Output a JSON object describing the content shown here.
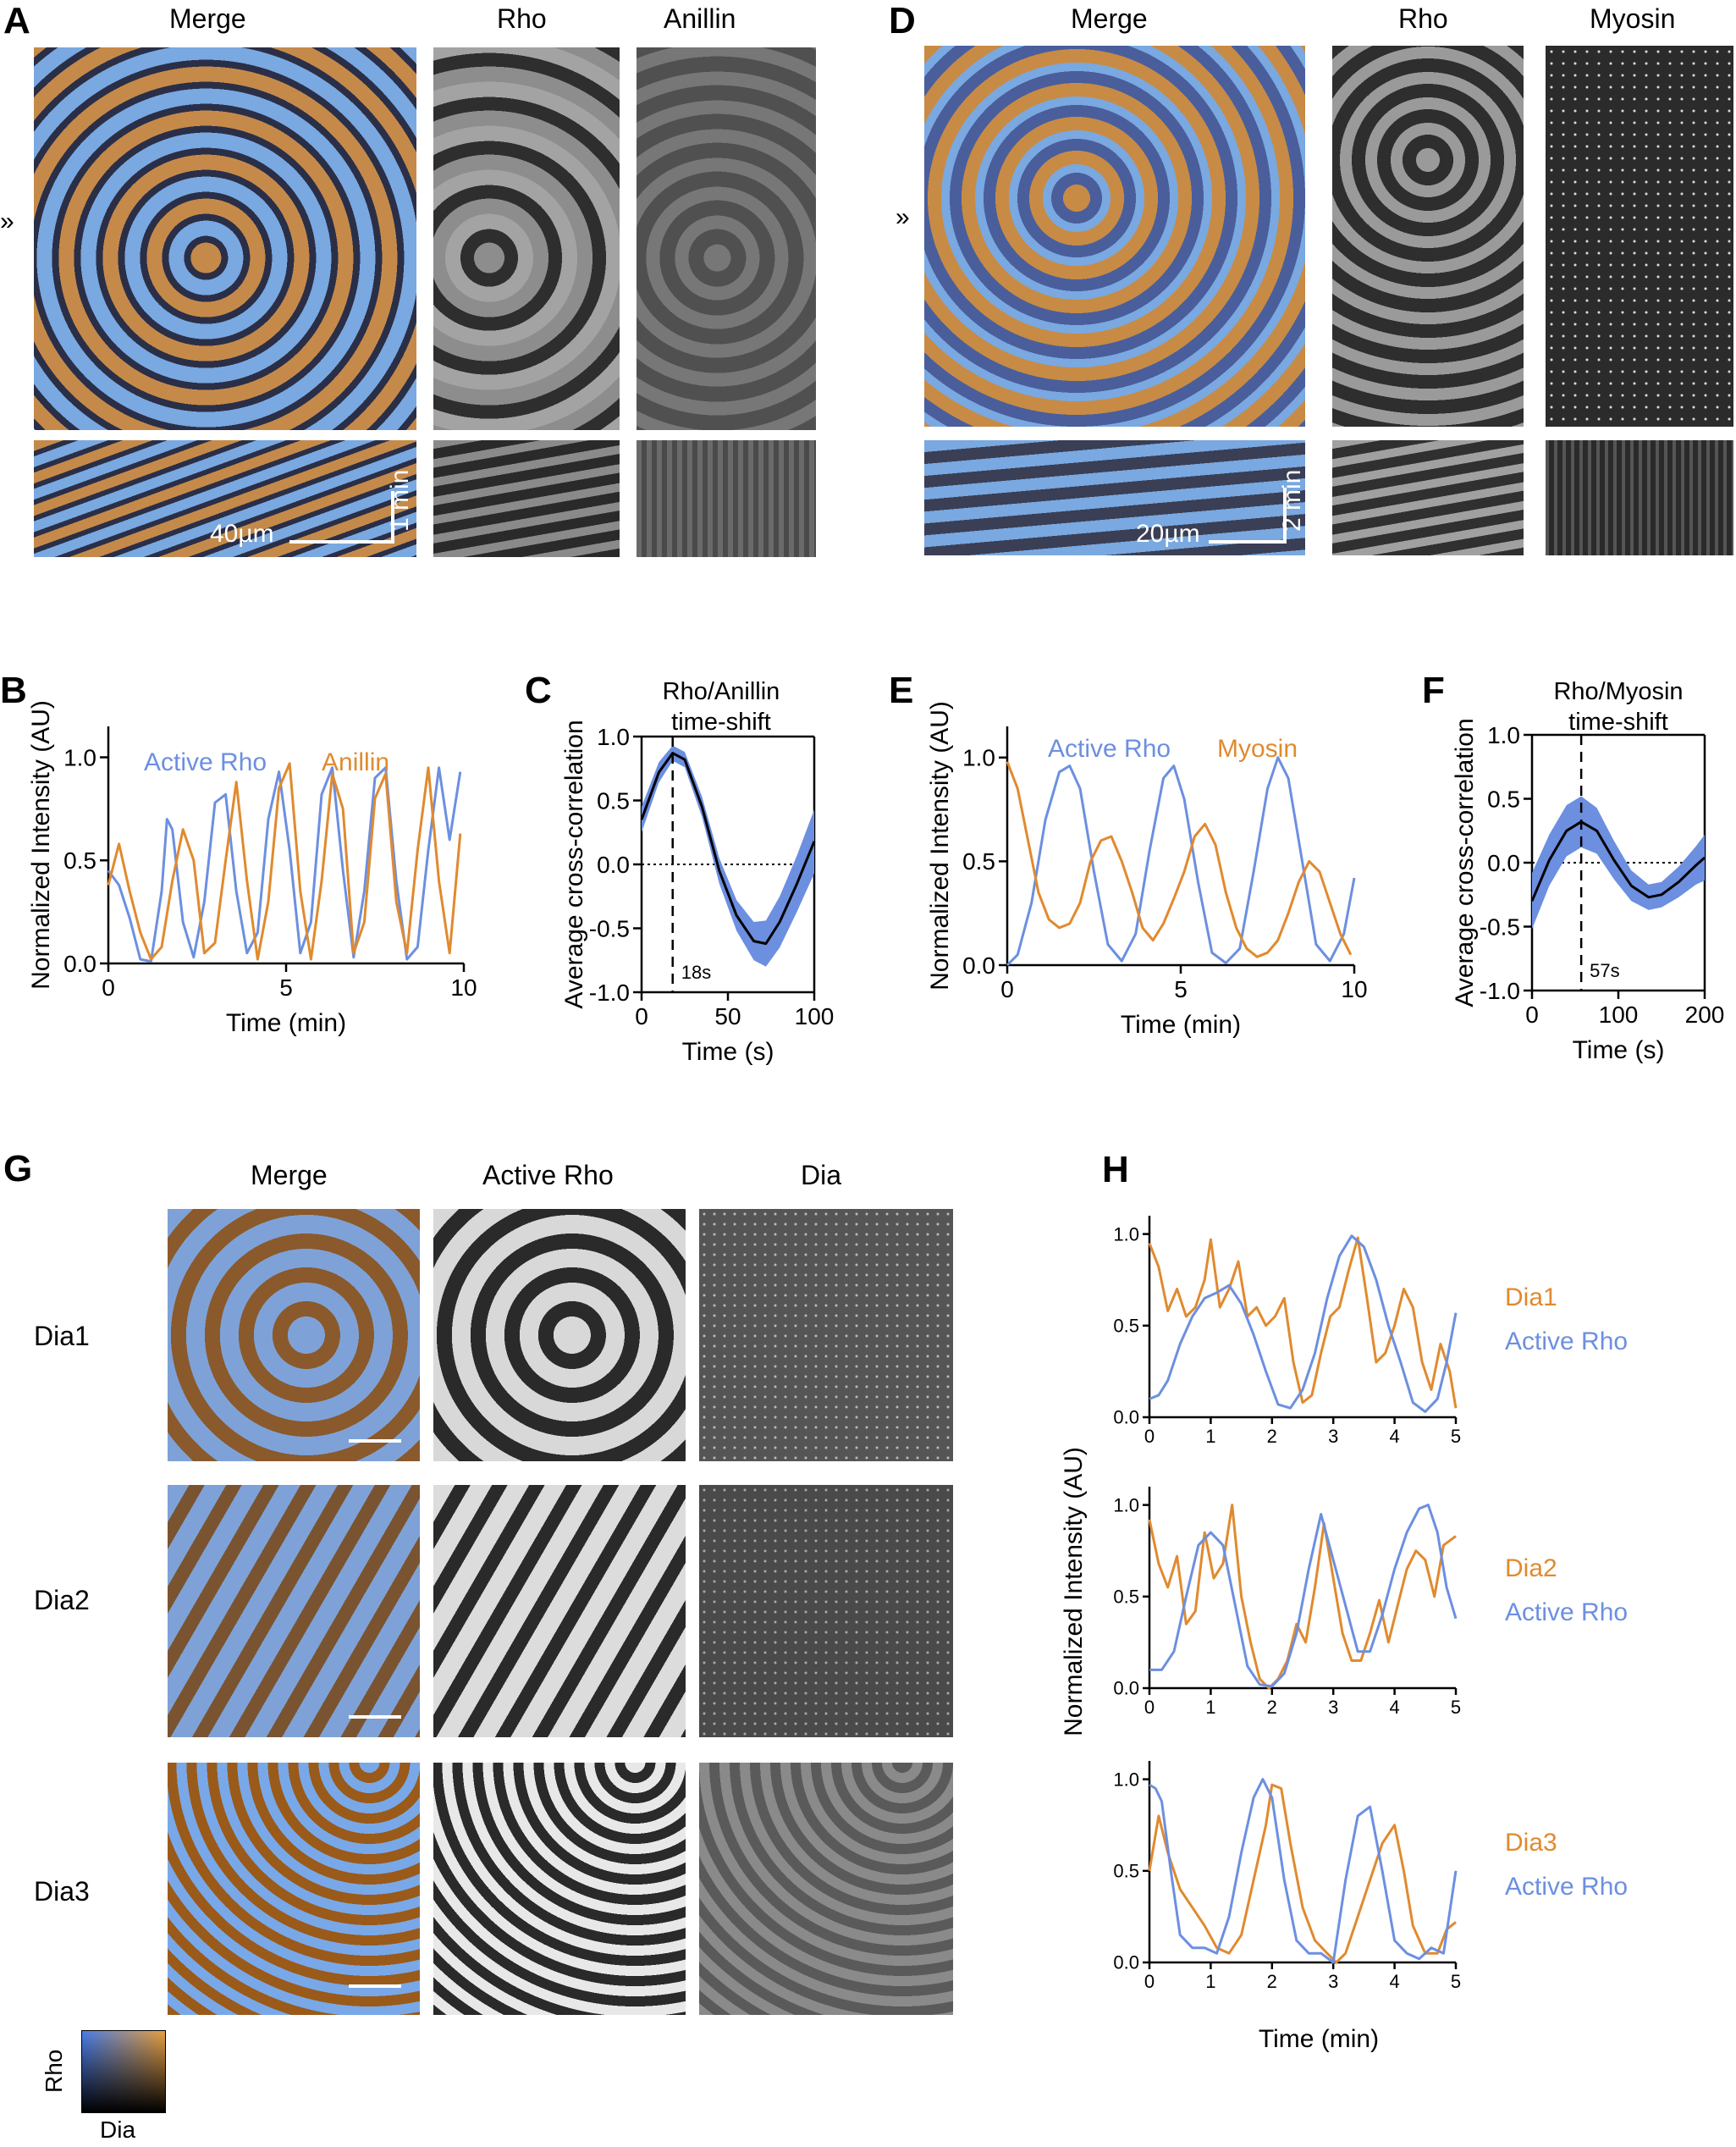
{
  "panels": {
    "A": {
      "letter": "A",
      "titles": [
        "Merge",
        "Rho",
        "Anillin"
      ],
      "arrow": "»",
      "scale_x": "40µm",
      "scale_y": "1 min"
    },
    "D": {
      "letter": "D",
      "titles": [
        "Merge",
        "Rho",
        "Myosin"
      ],
      "arrow": "»",
      "scale_x": "20µm",
      "scale_y": "2 min"
    },
    "G": {
      "letter": "G",
      "titles": [
        "Merge",
        "Active Rho",
        "Dia"
      ],
      "rows": [
        "Dia1",
        "Dia2",
        "Dia3"
      ],
      "colorkey_y": "Rho",
      "colorkey_x": "Dia"
    }
  },
  "colors": {
    "rho": "#6c8fe0",
    "partner": "#e08a2f",
    "band": "#6c8fe0"
  },
  "chart_data": [
    {
      "id": "B",
      "letter": "B",
      "type": "line",
      "xlabel": "Time (min)",
      "ylabel": "Normalized Intensity (AU)",
      "xlim": [
        0,
        10
      ],
      "ylim": [
        0,
        1.15
      ],
      "xticks": [
        0,
        5,
        10
      ],
      "yticks": [
        0.0,
        0.5,
        1.0
      ],
      "legend": [
        "Active Rho",
        "Anillin"
      ],
      "series": [
        {
          "name": "Active Rho",
          "color": "#6c8fe0",
          "x": [
            0,
            0.3,
            0.6,
            0.9,
            1.2,
            1.5,
            1.65,
            1.8,
            2.1,
            2.4,
            2.7,
            3.0,
            3.3,
            3.6,
            3.9,
            4.2,
            4.5,
            4.8,
            5.1,
            5.4,
            5.7,
            6.0,
            6.3,
            6.6,
            6.9,
            7.2,
            7.5,
            7.8,
            8.1,
            8.4,
            8.7,
            9.0,
            9.3,
            9.6,
            9.9
          ],
          "y": [
            0.45,
            0.38,
            0.22,
            0.02,
            0.01,
            0.35,
            0.7,
            0.65,
            0.2,
            0.03,
            0.3,
            0.78,
            0.82,
            0.35,
            0.05,
            0.15,
            0.7,
            0.93,
            0.55,
            0.05,
            0.2,
            0.82,
            0.95,
            0.45,
            0.03,
            0.35,
            0.9,
            0.95,
            0.4,
            0.02,
            0.08,
            0.55,
            0.95,
            0.6,
            0.93
          ]
        },
        {
          "name": "Anillin",
          "color": "#e08a2f",
          "x": [
            0,
            0.3,
            0.6,
            0.9,
            1.2,
            1.5,
            1.8,
            2.1,
            2.4,
            2.7,
            3.0,
            3.3,
            3.6,
            3.9,
            4.2,
            4.5,
            4.8,
            5.1,
            5.4,
            5.7,
            6.0,
            6.3,
            6.6,
            6.9,
            7.2,
            7.5,
            7.8,
            8.1,
            8.4,
            8.7,
            9.0,
            9.3,
            9.6,
            9.9
          ],
          "y": [
            0.38,
            0.58,
            0.35,
            0.15,
            0.02,
            0.08,
            0.4,
            0.65,
            0.5,
            0.05,
            0.1,
            0.5,
            0.88,
            0.4,
            0.02,
            0.3,
            0.85,
            0.97,
            0.35,
            0.02,
            0.4,
            0.92,
            0.75,
            0.05,
            0.2,
            0.8,
            0.92,
            0.3,
            0.05,
            0.55,
            0.95,
            0.4,
            0.05,
            0.63
          ]
        }
      ]
    },
    {
      "id": "C",
      "letter": "C",
      "type": "line",
      "title": "Rho/Anillin\ntime-shift",
      "xlabel": "Time (s)",
      "ylabel": "Average cross-correlation",
      "xlim": [
        0,
        100
      ],
      "ylim": [
        -1,
        1
      ],
      "xticks": [
        0,
        50,
        100
      ],
      "yticks": [
        -1.0,
        -0.5,
        0.0,
        0.5,
        1.0
      ],
      "vline": 18,
      "vline_label": "18s",
      "series": [
        {
          "name": "",
          "color": "#000",
          "x": [
            0,
            10,
            18,
            25,
            35,
            45,
            55,
            65,
            72,
            80,
            90,
            100
          ],
          "y": [
            0.35,
            0.72,
            0.87,
            0.82,
            0.45,
            -0.05,
            -0.4,
            -0.6,
            -0.62,
            -0.45,
            -0.15,
            0.18
          ],
          "band": [
            0.1,
            0.08,
            0.06,
            0.06,
            0.08,
            0.1,
            0.12,
            0.15,
            0.18,
            0.2,
            0.22,
            0.25
          ]
        }
      ]
    },
    {
      "id": "E",
      "letter": "E",
      "type": "line",
      "xlabel": "Time (min)",
      "ylabel": "Normalized Intensity (AU)",
      "xlim": [
        0,
        10
      ],
      "ylim": [
        0,
        1.15
      ],
      "xticks": [
        0,
        5,
        10
      ],
      "yticks": [
        0.0,
        0.5,
        1.0
      ],
      "legend": [
        "Active Rho",
        "Myosin"
      ],
      "series": [
        {
          "name": "Active Rho",
          "color": "#6c8fe0",
          "x": [
            0,
            0.3,
            0.7,
            1.1,
            1.5,
            1.8,
            2.1,
            2.5,
            2.9,
            3.3,
            3.7,
            4.1,
            4.5,
            4.8,
            5.1,
            5.5,
            5.9,
            6.3,
            6.7,
            7.1,
            7.5,
            7.8,
            8.1,
            8.5,
            8.9,
            9.3,
            9.7,
            10
          ],
          "y": [
            0.0,
            0.05,
            0.3,
            0.7,
            0.93,
            0.96,
            0.85,
            0.45,
            0.1,
            0.02,
            0.15,
            0.55,
            0.9,
            0.96,
            0.8,
            0.4,
            0.06,
            0.01,
            0.08,
            0.45,
            0.85,
            1.0,
            0.9,
            0.5,
            0.1,
            0.02,
            0.15,
            0.42
          ]
        },
        {
          "name": "Myosin",
          "color": "#e08a2f",
          "x": [
            0,
            0.3,
            0.6,
            0.9,
            1.2,
            1.5,
            1.8,
            2.1,
            2.4,
            2.7,
            3.0,
            3.3,
            3.6,
            3.9,
            4.2,
            4.5,
            4.8,
            5.1,
            5.4,
            5.7,
            6.0,
            6.3,
            6.6,
            6.9,
            7.2,
            7.5,
            7.8,
            8.1,
            8.4,
            8.7,
            9.0,
            9.3,
            9.6,
            9.9
          ],
          "y": [
            0.98,
            0.85,
            0.6,
            0.35,
            0.22,
            0.18,
            0.2,
            0.3,
            0.5,
            0.6,
            0.62,
            0.5,
            0.35,
            0.18,
            0.12,
            0.2,
            0.32,
            0.45,
            0.62,
            0.68,
            0.58,
            0.35,
            0.18,
            0.08,
            0.04,
            0.06,
            0.12,
            0.25,
            0.4,
            0.5,
            0.45,
            0.3,
            0.15,
            0.05
          ]
        }
      ]
    },
    {
      "id": "F",
      "letter": "F",
      "type": "line",
      "title": "Rho/Myosin\ntime-shift",
      "xlabel": "Time (s)",
      "ylabel": "Average cross-correlation",
      "xlim": [
        0,
        200
      ],
      "ylim": [
        -1,
        1
      ],
      "xticks": [
        0,
        100,
        200
      ],
      "yticks": [
        -1.0,
        -0.5,
        0.0,
        0.5,
        1.0
      ],
      "vline": 57,
      "vline_label": "57s",
      "series": [
        {
          "name": "",
          "color": "#000",
          "x": [
            0,
            20,
            40,
            57,
            75,
            95,
            115,
            135,
            150,
            170,
            190,
            200
          ],
          "y": [
            -0.3,
            0.02,
            0.25,
            0.32,
            0.25,
            0.02,
            -0.18,
            -0.27,
            -0.25,
            -0.15,
            -0.02,
            0.04
          ],
          "band": [
            0.22,
            0.2,
            0.2,
            0.2,
            0.18,
            0.15,
            0.12,
            0.1,
            0.1,
            0.12,
            0.15,
            0.18
          ]
        }
      ]
    },
    {
      "id": "H",
      "letter": "H",
      "type": "line",
      "xlabel": "Time (min)",
      "ylabel": "Normalized Intensity (AU)",
      "subplots": [
        {
          "legend": [
            "Dia1",
            "Active  Rho"
          ],
          "xlim": [
            0,
            5
          ],
          "ylim": [
            0,
            1.1
          ],
          "xticks": [
            0,
            1,
            2,
            3,
            4,
            5
          ],
          "yticks": [
            0.0,
            0.5,
            1.0
          ],
          "series": [
            {
              "name": "Dia1",
              "color": "#e08a2f",
              "x": [
                0,
                0.15,
                0.3,
                0.45,
                0.6,
                0.75,
                0.9,
                1.0,
                1.15,
                1.3,
                1.45,
                1.6,
                1.75,
                1.9,
                2.05,
                2.2,
                2.35,
                2.5,
                2.65,
                2.8,
                2.95,
                3.1,
                3.25,
                3.4,
                3.55,
                3.7,
                3.85,
                4.0,
                4.15,
                4.3,
                4.45,
                4.6,
                4.75,
                4.9,
                5.0
              ],
              "y": [
                0.95,
                0.82,
                0.58,
                0.7,
                0.55,
                0.6,
                0.75,
                0.97,
                0.6,
                0.7,
                0.85,
                0.55,
                0.6,
                0.5,
                0.55,
                0.65,
                0.3,
                0.08,
                0.12,
                0.35,
                0.55,
                0.6,
                0.8,
                0.98,
                0.65,
                0.3,
                0.35,
                0.5,
                0.7,
                0.6,
                0.3,
                0.15,
                0.4,
                0.25,
                0.05
              ]
            },
            {
              "name": "Active  Rho",
              "color": "#6c8fe0",
              "x": [
                0,
                0.15,
                0.3,
                0.5,
                0.7,
                0.9,
                1.1,
                1.3,
                1.5,
                1.7,
                1.9,
                2.1,
                2.3,
                2.5,
                2.7,
                2.9,
                3.1,
                3.3,
                3.5,
                3.7,
                3.9,
                4.1,
                4.3,
                4.5,
                4.7,
                4.85,
                5.0
              ],
              "y": [
                0.1,
                0.12,
                0.2,
                0.4,
                0.55,
                0.65,
                0.68,
                0.72,
                0.62,
                0.45,
                0.25,
                0.07,
                0.05,
                0.15,
                0.35,
                0.65,
                0.88,
                0.99,
                0.93,
                0.75,
                0.5,
                0.3,
                0.08,
                0.03,
                0.1,
                0.3,
                0.57
              ]
            }
          ]
        },
        {
          "legend": [
            "Dia2",
            "Active  Rho"
          ],
          "xlim": [
            0,
            5
          ],
          "ylim": [
            0,
            1.1
          ],
          "xticks": [
            0,
            1,
            2,
            3,
            4,
            5
          ],
          "yticks": [
            0.0,
            0.5,
            1.0
          ],
          "series": [
            {
              "name": "Dia2",
              "color": "#e08a2f",
              "x": [
                0,
                0.15,
                0.3,
                0.45,
                0.6,
                0.75,
                0.9,
                1.05,
                1.2,
                1.35,
                1.5,
                1.65,
                1.8,
                1.95,
                2.1,
                2.25,
                2.4,
                2.55,
                2.7,
                2.85,
                3.0,
                3.15,
                3.3,
                3.45,
                3.6,
                3.75,
                3.9,
                4.05,
                4.2,
                4.35,
                4.5,
                4.65,
                4.8,
                5.0
              ],
              "y": [
                0.92,
                0.68,
                0.55,
                0.72,
                0.35,
                0.42,
                0.85,
                0.6,
                0.68,
                1.0,
                0.5,
                0.25,
                0.05,
                0.0,
                0.05,
                0.15,
                0.35,
                0.25,
                0.55,
                0.9,
                0.6,
                0.3,
                0.15,
                0.15,
                0.3,
                0.48,
                0.25,
                0.45,
                0.65,
                0.75,
                0.7,
                0.5,
                0.78,
                0.83
              ]
            },
            {
              "name": "Active  Rho",
              "color": "#6c8fe0",
              "x": [
                0,
                0.2,
                0.4,
                0.6,
                0.8,
                1.0,
                1.2,
                1.4,
                1.6,
                1.8,
                2.0,
                2.2,
                2.4,
                2.6,
                2.8,
                3.0,
                3.2,
                3.4,
                3.6,
                3.8,
                4.0,
                4.2,
                4.4,
                4.55,
                4.7,
                4.85,
                5.0
              ],
              "y": [
                0.1,
                0.1,
                0.2,
                0.5,
                0.78,
                0.85,
                0.78,
                0.45,
                0.12,
                0.02,
                0.01,
                0.08,
                0.3,
                0.65,
                0.95,
                0.7,
                0.45,
                0.2,
                0.2,
                0.4,
                0.65,
                0.85,
                0.98,
                1.0,
                0.85,
                0.55,
                0.38
              ]
            }
          ]
        },
        {
          "legend": [
            "Dia3",
            "Active  Rho"
          ],
          "xlim": [
            0,
            5
          ],
          "ylim": [
            0,
            1.1
          ],
          "xticks": [
            0,
            1,
            2,
            3,
            4,
            5
          ],
          "yticks": [
            0.0,
            0.5,
            1.0
          ],
          "series": [
            {
              "name": "Dia3",
              "color": "#e08a2f",
              "x": [
                0,
                0.15,
                0.3,
                0.5,
                0.7,
                0.9,
                1.1,
                1.3,
                1.5,
                1.7,
                1.9,
                2.0,
                2.15,
                2.3,
                2.5,
                2.7,
                2.9,
                3.05,
                3.2,
                3.4,
                3.6,
                3.8,
                4.0,
                4.15,
                4.3,
                4.5,
                4.7,
                4.85,
                5.0
              ],
              "y": [
                0.5,
                0.8,
                0.6,
                0.4,
                0.3,
                0.2,
                0.08,
                0.05,
                0.15,
                0.45,
                0.75,
                0.97,
                0.95,
                0.65,
                0.3,
                0.12,
                0.05,
                0.0,
                0.05,
                0.25,
                0.45,
                0.65,
                0.75,
                0.5,
                0.2,
                0.05,
                0.05,
                0.18,
                0.22
              ]
            },
            {
              "name": "Active  Rho",
              "color": "#6c8fe0",
              "x": [
                0,
                0.1,
                0.2,
                0.35,
                0.5,
                0.7,
                0.9,
                1.1,
                1.3,
                1.5,
                1.7,
                1.85,
                2.0,
                2.2,
                2.4,
                2.6,
                2.8,
                3.0,
                3.2,
                3.4,
                3.6,
                3.8,
                4.0,
                4.2,
                4.4,
                4.6,
                4.8,
                5.0
              ],
              "y": [
                0.97,
                0.95,
                0.88,
                0.5,
                0.15,
                0.08,
                0.08,
                0.05,
                0.25,
                0.6,
                0.9,
                1.0,
                0.9,
                0.45,
                0.12,
                0.05,
                0.05,
                0.0,
                0.45,
                0.8,
                0.85,
                0.5,
                0.12,
                0.05,
                0.02,
                0.08,
                0.05,
                0.5
              ]
            }
          ]
        }
      ]
    }
  ]
}
